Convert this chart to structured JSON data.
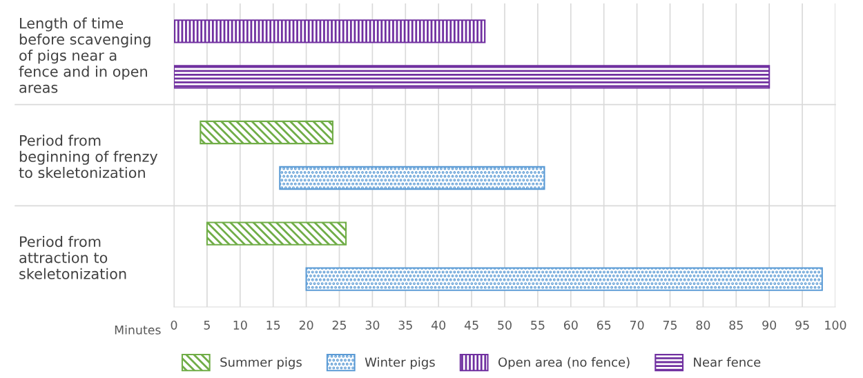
{
  "chart_data": {
    "type": "bar",
    "orientation": "horizontal",
    "categories": [
      "Length of time\nbefore scavenging\nof pigs near a\nfence and in open\nareas",
      "Period from\nbeginning of frenzy\nto skeletonization",
      "Period from\nattraction to\nskeletonization"
    ],
    "series": [
      {
        "name": "Summer pigs",
        "color": "#70ad47",
        "base": [
          null,
          4,
          5
        ],
        "values": [
          null,
          20,
          21
        ]
      },
      {
        "name": "Winter pigs",
        "color": "#5b9bd5",
        "base": [
          null,
          16,
          20
        ],
        "values": [
          null,
          40,
          78
        ]
      },
      {
        "name": "Open area (no fence)",
        "color": "#7030a0",
        "base": [
          0,
          null,
          null
        ],
        "values": [
          47,
          null,
          null
        ]
      },
      {
        "name": "Near fence",
        "color": "#7030a0",
        "base": [
          0,
          null,
          null
        ],
        "values": [
          90,
          null,
          null
        ]
      }
    ],
    "xlabel": "Minutes",
    "xlim": [
      0,
      100
    ],
    "xticks": [
      0,
      5,
      10,
      15,
      20,
      25,
      30,
      35,
      40,
      45,
      50,
      55,
      60,
      65,
      70,
      75,
      80,
      85,
      90,
      95,
      100
    ],
    "grid": true,
    "legend": "bottom"
  }
}
